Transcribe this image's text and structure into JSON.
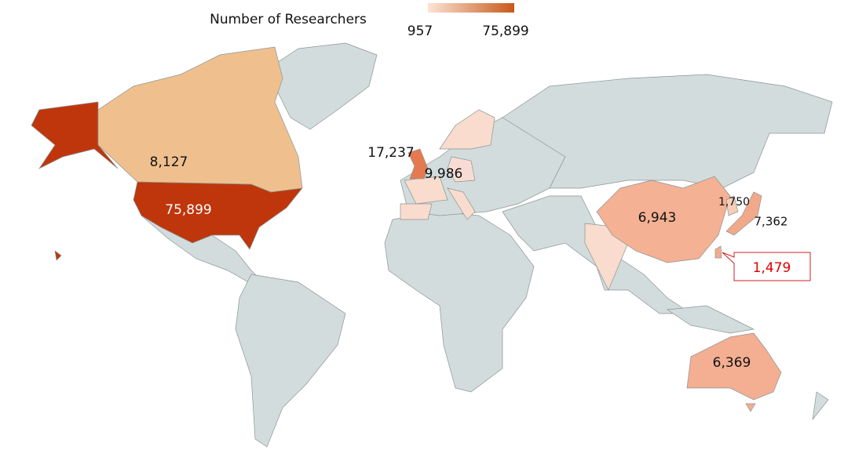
{
  "chart_data": {
    "type": "choropleth",
    "title": "Number of Researchers",
    "legend_ticks": [
      957,
      {
        "value": 75899,
        "label": "75,899"
      }
    ],
    "legend_colors": [
      "#fbe4d5",
      "#c8581a"
    ],
    "values": [
      75899,
      8127,
      17237,
      9986,
      6943,
      1750,
      7362,
      1479,
      6369
    ],
    "value_labels": [
      "75,899",
      "8,127",
      "17,237",
      "9,986",
      "6,943",
      "1,750",
      "7,362",
      "1,479",
      "6,369"
    ],
    "colors": [
      "#bf360c",
      "#efc08e",
      "#e57a50",
      "#f8dcd4",
      "#f4b193",
      "#f6cdb8",
      "#f2a98a",
      "#f0ad8e",
      "#f4ae92"
    ]
  }
}
